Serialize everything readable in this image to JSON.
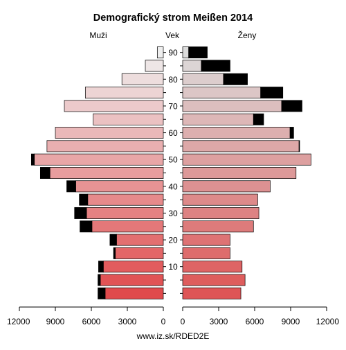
{
  "chart_data": {
    "type": "bar",
    "title": "Demografický strom Meißen 2014",
    "left_label": "Muži",
    "center_label": "Vek",
    "right_label": "Ženy",
    "footer": "www.iz.sk/RDED2E",
    "age_groups": [
      "0-4",
      "5-9",
      "10-14",
      "15-19",
      "20-24",
      "25-29",
      "30-34",
      "35-39",
      "40-44",
      "45-49",
      "50-54",
      "55-59",
      "60-64",
      "65-69",
      "70-74",
      "75-79",
      "80-84",
      "85-89",
      "90+"
    ],
    "age_tick_labels": [
      "10",
      "20",
      "30",
      "40",
      "50",
      "60",
      "70",
      "80",
      "90"
    ],
    "x_tick_labels_left": [
      "12000",
      "9000",
      "6000",
      "3000",
      "0"
    ],
    "x_tick_labels_right": [
      "0",
      "3000",
      "6000",
      "9000",
      "12000"
    ],
    "xlim": [
      0,
      12000
    ],
    "series": [
      {
        "name": "Muži",
        "values": [
          4850,
          5250,
          5000,
          4000,
          3900,
          5950,
          6400,
          6300,
          7300,
          9450,
          10750,
          9700,
          9000,
          5850,
          8250,
          6500,
          3450,
          1500,
          500
        ]
      },
      {
        "name": "Muži",
        "values": [
          600,
          200,
          400,
          150,
          550,
          1000,
          1000,
          700,
          750,
          800,
          250,
          0,
          0,
          0,
          0,
          0,
          0,
          0,
          0
        ]
      },
      {
        "name": "Ženy",
        "values": [
          4850,
          5200,
          4950,
          3950,
          3950,
          5900,
          6350,
          6250,
          7300,
          9450,
          10700,
          9700,
          8950,
          5900,
          8250,
          6500,
          3400,
          1550,
          500
        ]
      },
      {
        "name": "Ženy",
        "values": [
          0,
          0,
          0,
          0,
          0,
          0,
          0,
          0,
          0,
          0,
          0,
          50,
          300,
          850,
          1700,
          1850,
          2000,
          2400,
          1550
        ]
      }
    ],
    "colors": {
      "male_color_young": "#e04a4c",
      "male_color_old": "#efefef",
      "female_color_young": "#de5556",
      "female_color_old": "#dcdcdc",
      "excess": "#000000"
    }
  }
}
